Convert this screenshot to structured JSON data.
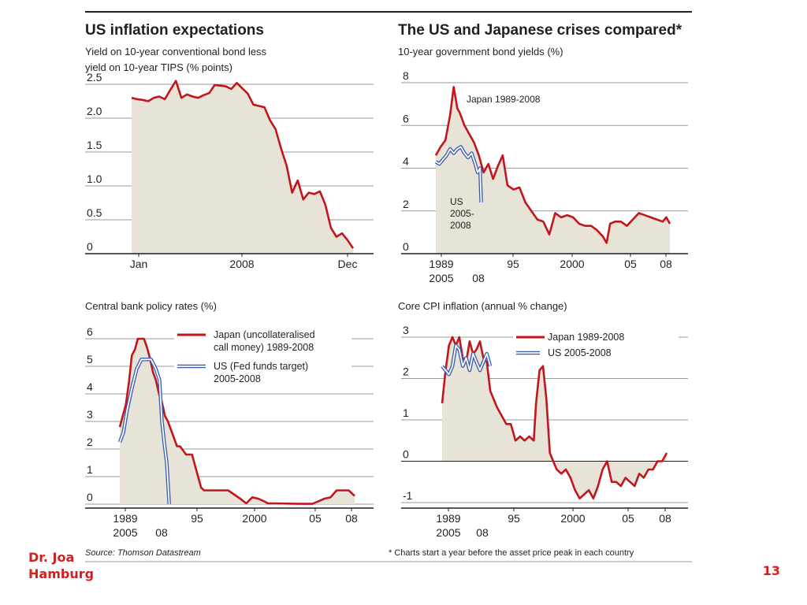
{
  "chart_data": [
    {
      "type": "area",
      "title": "US inflation expectations",
      "subtitle": [
        "Yield on 10-year conventional bond less",
        "yield on 10-year TIPS (% points)"
      ],
      "ylim": [
        0,
        2.5
      ],
      "y_ticks": [
        "2.5",
        "2.0",
        "1.5",
        "1.0",
        "0.5",
        "0"
      ],
      "x_ticks": [
        "Jan",
        "2008",
        "Dec"
      ],
      "grid": true,
      "series": [
        {
          "name": "",
          "color": "#c0161c",
          "x": [
            0,
            0.3,
            0.6,
            0.9,
            1.2,
            1.5,
            1.8,
            2.1,
            2.4,
            2.7,
            3,
            3.3,
            3.6,
            3.9,
            4.2,
            4.5,
            4.8,
            5.1,
            5.4,
            5.7,
            6,
            6.3,
            6.6,
            6.9,
            7.2,
            7.5,
            7.8,
            8.1,
            8.4,
            8.7,
            9,
            9.3,
            9.6,
            9.9,
            10.2,
            10.5,
            10.8,
            11.1,
            11.4,
            11.7,
            12
          ],
          "values": [
            2.3,
            2.28,
            2.27,
            2.25,
            2.3,
            2.32,
            2.28,
            2.42,
            2.55,
            2.3,
            2.35,
            2.32,
            2.3,
            2.34,
            2.37,
            2.49,
            2.48,
            2.47,
            2.43,
            2.52,
            2.44,
            2.36,
            2.2,
            2.18,
            2.16,
            1.97,
            1.84,
            1.55,
            1.3,
            0.9,
            1.08,
            0.8,
            0.9,
            0.88,
            0.92,
            0.72,
            0.38,
            0.25,
            0.3,
            0.2,
            0.08
          ]
        }
      ]
    },
    {
      "type": "line",
      "title": "The US and Japanese crises compared*",
      "subtitle": [
        "10-year government bond yields (%)"
      ],
      "ylim": [
        0,
        8
      ],
      "y_ticks": [
        "8",
        "6",
        "4",
        "2",
        "0"
      ],
      "x_ticks": [
        "1989",
        "95",
        "2000",
        "05",
        "08"
      ],
      "x_ticks_us": [
        "2005",
        "08"
      ],
      "grid": true,
      "series": [
        {
          "name": "Japan 1989-2008",
          "color": "#c0161c",
          "x": [
            1989,
            1989.4,
            1989.8,
            1990.2,
            1990.5,
            1990.8,
            1991,
            1991.4,
            1991.8,
            1992.2,
            1992.6,
            1993,
            1993.4,
            1993.8,
            1994.2,
            1994.6,
            1995,
            1995.5,
            1996,
            1996.5,
            1997,
            1997.5,
            1998,
            1998.5,
            1999,
            1999.5,
            2000,
            2000.5,
            2001,
            2001.5,
            2002,
            2002.5,
            2003,
            2003.3,
            2003.6,
            2004,
            2004.5,
            2005,
            2005.5,
            2006,
            2006.5,
            2007,
            2007.5,
            2008,
            2008.3,
            2008.6
          ],
          "values": [
            4.6,
            5.0,
            5.3,
            6.5,
            7.8,
            6.8,
            6.6,
            6.0,
            5.6,
            5.2,
            4.6,
            3.8,
            4.2,
            3.5,
            4.1,
            4.6,
            3.2,
            3.0,
            3.1,
            2.4,
            2.0,
            1.6,
            1.5,
            0.9,
            1.9,
            1.7,
            1.8,
            1.7,
            1.4,
            1.3,
            1.3,
            1.1,
            0.8,
            0.5,
            1.4,
            1.5,
            1.5,
            1.3,
            1.6,
            1.9,
            1.8,
            1.7,
            1.6,
            1.5,
            1.7,
            1.4
          ]
        },
        {
          "name": "US 2005-2008",
          "color": "#3a5fb0",
          "x": [
            1989,
            1989.3,
            1989.6,
            1989.9,
            1990.2,
            1990.5,
            1990.8,
            1991.1,
            1991.4,
            1991.7,
            1992,
            1992.3,
            1992.5,
            1992.7,
            1992.8
          ],
          "values": [
            4.3,
            4.2,
            4.4,
            4.6,
            4.9,
            4.7,
            4.9,
            5.0,
            4.7,
            4.5,
            4.7,
            4.2,
            3.8,
            4.0,
            2.4
          ]
        }
      ]
    },
    {
      "type": "line",
      "title": "",
      "subtitle": [
        "Central bank policy rates (%)"
      ],
      "ylim": [
        0,
        6
      ],
      "y_ticks": [
        "6",
        "5",
        "4",
        "3",
        "2",
        "1",
        "0"
      ],
      "x_ticks": [
        "1989",
        "95",
        "2000",
        "05",
        "08"
      ],
      "x_ticks_us": [
        "2005",
        "08"
      ],
      "grid": true,
      "series": [
        {
          "name": "Japan (uncollateralised call money) 1989-2008",
          "color": "#c0161c",
          "x": [
            1989,
            1989.25,
            1989.5,
            1989.75,
            1990,
            1990.25,
            1990.5,
            1990.75,
            1991,
            1991.25,
            1991.5,
            1991.75,
            1992,
            1992.25,
            1992.5,
            1992.75,
            1993,
            1993.25,
            1993.5,
            1993.75,
            1994,
            1994.5,
            1995,
            1995.5,
            1995.75,
            1996,
            1997,
            1998,
            1999,
            1999.5,
            2000,
            2000.5,
            2001,
            2001.3,
            2002,
            2003,
            2004,
            2005,
            2006,
            2006.5,
            2007,
            2007.5,
            2008,
            2008.5
          ],
          "values": [
            2.8,
            3.2,
            3.6,
            4.4,
            5.4,
            5.6,
            6.0,
            6.0,
            6.0,
            5.7,
            5.3,
            4.8,
            4.5,
            4.0,
            3.7,
            3.2,
            3.0,
            2.7,
            2.4,
            2.1,
            2.1,
            1.8,
            1.8,
            1.0,
            0.6,
            0.5,
            0.5,
            0.5,
            0.2,
            0.03,
            0.25,
            0.2,
            0.1,
            0.03,
            0.03,
            0.02,
            0.01,
            0.01,
            0.2,
            0.25,
            0.5,
            0.5,
            0.5,
            0.3
          ]
        },
        {
          "name": "US (Fed funds target) 2005-2008",
          "color": "#3a5fb0",
          "x": [
            1989,
            1989.3,
            1989.6,
            1990,
            1990.4,
            1990.8,
            1991.2,
            1991.6,
            1992,
            1992.3,
            1992.5,
            1992.7,
            1992.9,
            1993.1
          ],
          "values": [
            2.25,
            2.6,
            3.4,
            4.2,
            4.9,
            5.25,
            5.25,
            5.25,
            4.9,
            4.5,
            3.0,
            2.2,
            1.5,
            0.0
          ]
        }
      ]
    },
    {
      "type": "line",
      "title": "",
      "subtitle": [
        "Core CPI inflation (annual % change)"
      ],
      "ylim": [
        -1,
        3
      ],
      "y_ticks": [
        "3",
        "2",
        "1",
        "0",
        "-1"
      ],
      "x_ticks": [
        "1989",
        "95",
        "2000",
        "05",
        "08"
      ],
      "x_ticks_us": [
        "2005",
        "08"
      ],
      "grid": true,
      "series": [
        {
          "name": "Japan 1989-2008",
          "color": "#c0161c",
          "x": [
            1989,
            1989.3,
            1989.6,
            1989.9,
            1990.2,
            1990.5,
            1990.8,
            1991.1,
            1991.4,
            1991.7,
            1992,
            1992.3,
            1992.6,
            1992.9,
            1993.2,
            1993.5,
            1993.8,
            1994.2,
            1994.6,
            1995,
            1995.4,
            1995.8,
            1996.2,
            1996.6,
            1997,
            1997.2,
            1997.5,
            1997.8,
            1998.1,
            1998.4,
            1998.7,
            1999,
            1999.4,
            1999.8,
            2000.2,
            2000.6,
            2001,
            2001.4,
            2001.8,
            2002.2,
            2002.6,
            2003,
            2003.4,
            2003.8,
            2004.2,
            2004.6,
            2005,
            2005.4,
            2005.8,
            2006.2,
            2006.6,
            2007,
            2007.4,
            2007.8,
            2008.2,
            2008.6
          ],
          "values": [
            1.4,
            2.2,
            2.8,
            3.0,
            2.8,
            3.0,
            2.5,
            2.4,
            2.9,
            2.6,
            2.7,
            2.9,
            2.5,
            2.4,
            1.7,
            1.5,
            1.3,
            1.1,
            0.9,
            0.9,
            0.5,
            0.6,
            0.5,
            0.6,
            0.5,
            1.4,
            2.2,
            2.3,
            1.5,
            0.2,
            0.0,
            -0.2,
            -0.3,
            -0.2,
            -0.4,
            -0.7,
            -0.9,
            -0.8,
            -0.7,
            -0.9,
            -0.6,
            -0.2,
            0.0,
            -0.5,
            -0.5,
            -0.6,
            -0.4,
            -0.5,
            -0.6,
            -0.3,
            -0.4,
            -0.2,
            -0.2,
            0.0,
            0.0,
            0.2
          ]
        },
        {
          "name": "US 2005-2008",
          "color": "#3a5fb0",
          "x": [
            1989,
            1989.3,
            1989.6,
            1989.9,
            1990.2,
            1990.5,
            1990.8,
            1991.1,
            1991.4,
            1991.7,
            1992,
            1992.3,
            1992.6,
            1992.9,
            1993.2
          ],
          "values": [
            2.3,
            2.2,
            2.1,
            2.3,
            2.8,
            2.7,
            2.3,
            2.5,
            2.2,
            2.6,
            2.4,
            2.2,
            2.4,
            2.6,
            2.3
          ]
        }
      ]
    }
  ],
  "source": "Source: Thomson Datastream",
  "footnote": "* Charts start a year before the asset price peak in each country",
  "footer": {
    "author_line1": "Dr. Joa",
    "author_line2": "Hamburg",
    "page_number": "13"
  },
  "colors": {
    "fill": "#e8e3d7",
    "japan": "#c0161c",
    "us": "#3a5fb0",
    "accent": "#d41f1f"
  }
}
